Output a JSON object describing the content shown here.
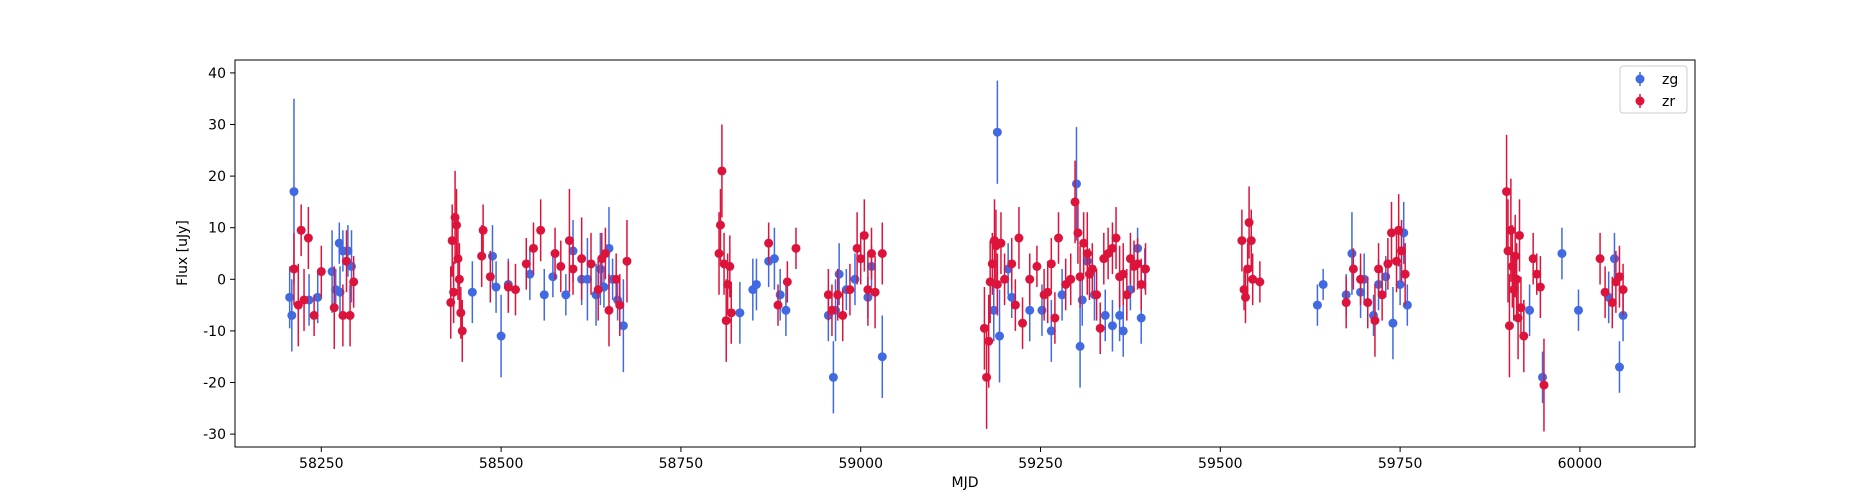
{
  "chart_data": {
    "type": "scatter",
    "xlabel": "MJD",
    "ylabel": "Flux [uJy]",
    "xlim": [
      58130,
      60160
    ],
    "ylim": [
      -32.5,
      42.5
    ],
    "xticks": [
      58250,
      58500,
      58750,
      59000,
      59250,
      59500,
      59750,
      60000
    ],
    "yticks": [
      -30,
      -20,
      -10,
      0,
      10,
      20,
      30,
      40
    ],
    "grid": false,
    "legend": "top-right",
    "series": [
      {
        "name": "zg",
        "color": "#4169e1",
        "points": [
          [
            58206,
            -3.5,
            6
          ],
          [
            58209,
            -7,
            7
          ],
          [
            58212,
            17,
            18
          ],
          [
            58233,
            -4,
            5
          ],
          [
            58245,
            -3.5,
            5
          ],
          [
            58265,
            1.5,
            8
          ],
          [
            58270,
            -2,
            4
          ],
          [
            58275,
            7,
            4
          ],
          [
            58280,
            5.5,
            4
          ],
          [
            58287,
            5.5,
            5
          ],
          [
            58292,
            2.5,
            7
          ],
          [
            58276,
            -2.5,
            5
          ],
          [
            58460,
            -2.5,
            6
          ],
          [
            58488,
            4.5,
            6
          ],
          [
            58493,
            -1.5,
            5
          ],
          [
            58500,
            -11,
            8
          ],
          [
            58510,
            -1,
            5
          ],
          [
            58540,
            1,
            5
          ],
          [
            58560,
            -3,
            5
          ],
          [
            58572,
            0.5,
            4
          ],
          [
            58590,
            -3,
            4
          ],
          [
            58600,
            5.5,
            6
          ],
          [
            58612,
            0,
            5
          ],
          [
            58620,
            0,
            8
          ],
          [
            58632,
            -3,
            6
          ],
          [
            58638,
            2,
            7
          ],
          [
            58643,
            -1.5,
            4
          ],
          [
            58650,
            6,
            8
          ],
          [
            58655,
            0,
            4
          ],
          [
            58662,
            -4,
            4
          ],
          [
            58670,
            -9,
            9
          ],
          [
            58832,
            -6.5,
            6
          ],
          [
            58850,
            -2,
            6
          ],
          [
            58855,
            -1,
            5
          ],
          [
            58872,
            3.5,
            5
          ],
          [
            58880,
            4,
            6
          ],
          [
            58888,
            -3,
            5
          ],
          [
            58896,
            -6,
            5
          ],
          [
            58955,
            -7,
            5
          ],
          [
            58962,
            -19,
            7
          ],
          [
            58965,
            -6,
            6
          ],
          [
            58970,
            1,
            6
          ],
          [
            58980,
            -2,
            4
          ],
          [
            58992,
            0,
            5
          ],
          [
            59010,
            -3.5,
            4
          ],
          [
            59015,
            2.5,
            4
          ],
          [
            59030,
            -15,
            8
          ],
          [
            59185,
            -6,
            6
          ],
          [
            59190,
            28.5,
            10
          ],
          [
            59193,
            -11,
            9
          ],
          [
            59205,
            2,
            5
          ],
          [
            59210,
            -3.5,
            4
          ],
          [
            59235,
            -6,
            6
          ],
          [
            59252,
            -6,
            5
          ],
          [
            59265,
            -10,
            6
          ],
          [
            59280,
            -3,
            5
          ],
          [
            59300,
            18.5,
            11
          ],
          [
            59305,
            -13,
            8
          ],
          [
            59308,
            -4,
            5
          ],
          [
            59315,
            3.5,
            5
          ],
          [
            59325,
            -3,
            5
          ],
          [
            59340,
            -7,
            5
          ],
          [
            59350,
            -9,
            5
          ],
          [
            59360,
            -7,
            5
          ],
          [
            59365,
            -10,
            5
          ],
          [
            59375,
            -2,
            4
          ],
          [
            59385,
            6,
            4
          ],
          [
            59390,
            -7.5,
            5
          ],
          [
            59395,
            2,
            4
          ],
          [
            59635,
            -5,
            4
          ],
          [
            59643,
            -1,
            3
          ],
          [
            59675,
            -3,
            4
          ],
          [
            59683,
            5,
            8
          ],
          [
            59695,
            -2.5,
            5
          ],
          [
            59700,
            0,
            5
          ],
          [
            59713,
            -7,
            4
          ],
          [
            59720,
            -1,
            5
          ],
          [
            59730,
            0.5,
            4
          ],
          [
            59740,
            -8.5,
            7
          ],
          [
            59750,
            -1,
            4
          ],
          [
            59755,
            9,
            6
          ],
          [
            59760,
            -5,
            4
          ],
          [
            59930,
            -6,
            5
          ],
          [
            59948,
            -19,
            5
          ],
          [
            59975,
            5,
            5
          ],
          [
            59998,
            -6,
            4
          ],
          [
            60040,
            -3.5,
            5
          ],
          [
            60048,
            4,
            5
          ],
          [
            60055,
            -17,
            5
          ],
          [
            60060,
            -7,
            5
          ]
        ]
      },
      {
        "name": "zr",
        "color": "#dc143c",
        "points": [
          [
            58212,
            2,
            7
          ],
          [
            58218,
            -5,
            8
          ],
          [
            58222,
            9.5,
            5
          ],
          [
            58226,
            -4,
            6
          ],
          [
            58232,
            8,
            6
          ],
          [
            58240,
            -7,
            4
          ],
          [
            58250,
            1.5,
            5
          ],
          [
            58268,
            -5.5,
            8
          ],
          [
            58280,
            -7,
            6
          ],
          [
            58285,
            3.5,
            6
          ],
          [
            58290,
            -7,
            6
          ],
          [
            58295,
            -0.5,
            5
          ],
          [
            58430,
            -4.5,
            7
          ],
          [
            58432,
            7.5,
            7
          ],
          [
            58434,
            -2.5,
            6
          ],
          [
            58436,
            12,
            9
          ],
          [
            58438,
            10.5,
            7
          ],
          [
            58440,
            4,
            8
          ],
          [
            58442,
            0,
            7
          ],
          [
            58444,
            -6.5,
            5
          ],
          [
            58446,
            -10,
            6
          ],
          [
            58473,
            4.5,
            6
          ],
          [
            58475,
            9.5,
            5
          ],
          [
            58485,
            0.5,
            5
          ],
          [
            58510,
            -1.5,
            5
          ],
          [
            58520,
            -2,
            5
          ],
          [
            58535,
            3,
            5
          ],
          [
            58545,
            6,
            5
          ],
          [
            58555,
            9.5,
            6
          ],
          [
            58575,
            5,
            5
          ],
          [
            58583,
            2.5,
            5
          ],
          [
            58595,
            7.5,
            10
          ],
          [
            58600,
            2,
            5
          ],
          [
            58612,
            4,
            8
          ],
          [
            58625,
            3,
            6
          ],
          [
            58635,
            -2,
            6
          ],
          [
            58640,
            4,
            5
          ],
          [
            58645,
            5,
            5
          ],
          [
            58650,
            -6,
            7
          ],
          [
            58660,
            0,
            5
          ],
          [
            58665,
            -5,
            6
          ],
          [
            58675,
            3.5,
            8
          ],
          [
            58803,
            5,
            8
          ],
          [
            58805,
            10.5,
            7
          ],
          [
            58807,
            21,
            9
          ],
          [
            58810,
            3,
            6
          ],
          [
            58813,
            -8,
            8
          ],
          [
            58815,
            -1,
            6
          ],
          [
            58818,
            2.5,
            6
          ],
          [
            58820,
            -6.5,
            6
          ],
          [
            58872,
            7,
            4
          ],
          [
            58885,
            -5,
            4
          ],
          [
            58898,
            -0.5,
            4
          ],
          [
            58910,
            6,
            4
          ],
          [
            58955,
            -3,
            5
          ],
          [
            58960,
            -6,
            5
          ],
          [
            58968,
            -3,
            5
          ],
          [
            58975,
            -7,
            5
          ],
          [
            58985,
            -2,
            5
          ],
          [
            58995,
            6,
            7
          ],
          [
            59000,
            4,
            5
          ],
          [
            59005,
            8.5,
            7
          ],
          [
            59010,
            -2,
            7
          ],
          [
            59015,
            5,
            5
          ],
          [
            59020,
            -2.5,
            7
          ],
          [
            59030,
            5,
            6
          ],
          [
            59172,
            -9.5,
            8
          ],
          [
            59175,
            -19,
            10
          ],
          [
            59178,
            -12,
            9
          ],
          [
            59180,
            -0.5,
            8
          ],
          [
            59183,
            3,
            6
          ],
          [
            59186,
            7.5,
            8
          ],
          [
            59188,
            6.5,
            7
          ],
          [
            59190,
            -1,
            6
          ],
          [
            59195,
            7,
            6
          ],
          [
            59200,
            0,
            5
          ],
          [
            59210,
            3,
            5
          ],
          [
            59215,
            -5,
            5
          ],
          [
            59220,
            8,
            6
          ],
          [
            59225,
            -8.5,
            5
          ],
          [
            59235,
            0,
            5
          ],
          [
            59245,
            2.5,
            4
          ],
          [
            59255,
            -3,
            5
          ],
          [
            59260,
            -2.5,
            6
          ],
          [
            59265,
            3,
            5
          ],
          [
            59270,
            -7.5,
            5
          ],
          [
            59275,
            8,
            5
          ],
          [
            59285,
            -1,
            5
          ],
          [
            59292,
            0,
            5
          ],
          [
            59298,
            15,
            8
          ],
          [
            59302,
            9,
            6
          ],
          [
            59305,
            0.5,
            6
          ],
          [
            59310,
            7,
            6
          ],
          [
            59315,
            5,
            8
          ],
          [
            59318,
            1,
            5
          ],
          [
            59322,
            2,
            5
          ],
          [
            59328,
            -3,
            5
          ],
          [
            59333,
            -9.5,
            5
          ],
          [
            59338,
            4,
            5
          ],
          [
            59344,
            5,
            5
          ],
          [
            59350,
            6,
            5
          ],
          [
            59355,
            8,
            6
          ],
          [
            59360,
            0.5,
            6
          ],
          [
            59365,
            1,
            6
          ],
          [
            59370,
            -3,
            5
          ],
          [
            59375,
            4,
            5
          ],
          [
            59380,
            2.5,
            5
          ],
          [
            59385,
            3,
            5
          ],
          [
            59390,
            -1,
            5
          ],
          [
            59396,
            2,
            5
          ],
          [
            59530,
            7.5,
            6
          ],
          [
            59533,
            -2,
            4
          ],
          [
            59535,
            -3.5,
            5
          ],
          [
            59538,
            2,
            5
          ],
          [
            59540,
            11,
            7
          ],
          [
            59543,
            7.5,
            6
          ],
          [
            59545,
            0,
            5
          ],
          [
            59555,
            -0.5,
            4
          ],
          [
            59675,
            -4.5,
            5
          ],
          [
            59685,
            2,
            4
          ],
          [
            59695,
            0,
            5
          ],
          [
            59705,
            -4.5,
            5
          ],
          [
            59715,
            -8,
            7
          ],
          [
            59720,
            2,
            5
          ],
          [
            59725,
            -3,
            5
          ],
          [
            59733,
            3,
            5
          ],
          [
            59738,
            9,
            6
          ],
          [
            59745,
            3.5,
            6
          ],
          [
            59748,
            9.5,
            7
          ],
          [
            59752,
            5.5,
            6
          ],
          [
            59757,
            1,
            6
          ],
          [
            59898,
            17,
            11
          ],
          [
            59900,
            5.5,
            10
          ],
          [
            59902,
            -9,
            10
          ],
          [
            59904,
            9.5,
            10
          ],
          [
            59906,
            2.5,
            8
          ],
          [
            59908,
            -2,
            6
          ],
          [
            59910,
            4.5,
            8
          ],
          [
            59912,
            0,
            7
          ],
          [
            59914,
            -7.5,
            8
          ],
          [
            59916,
            8.5,
            7
          ],
          [
            59918,
            -5.5,
            6
          ],
          [
            59922,
            -11,
            7
          ],
          [
            59935,
            4,
            5
          ],
          [
            59940,
            1,
            4
          ],
          [
            59945,
            -1.5,
            6
          ],
          [
            59950,
            -20.5,
            9
          ],
          [
            60028,
            4,
            5
          ],
          [
            60035,
            -2.5,
            5
          ],
          [
            60045,
            -4.5,
            5
          ],
          [
            60050,
            -0.5,
            6
          ],
          [
            60055,
            0.5,
            6
          ],
          [
            60060,
            -2,
            5
          ]
        ]
      }
    ]
  }
}
